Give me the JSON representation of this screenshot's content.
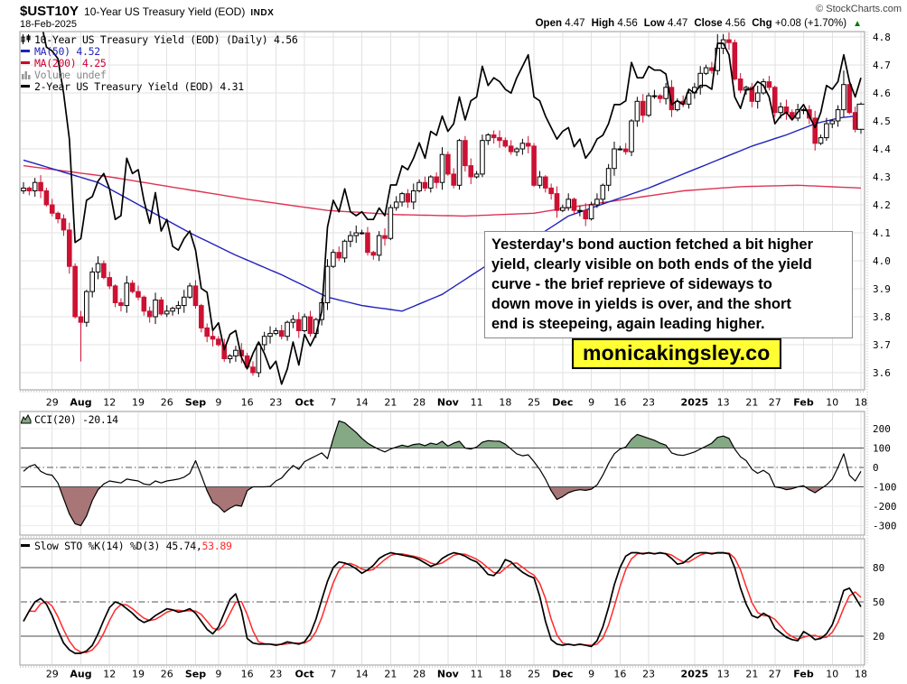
{
  "header": {
    "symbol": "$UST10Y",
    "name": "10-Year US Treasury Yield (EOD)",
    "exchange": "INDX",
    "date": "18-Feb-2025",
    "copyright": "© StockCharts.com",
    "ohlc": {
      "open_label": "Open",
      "open": "4.47",
      "high_label": "High",
      "high": "4.56",
      "low_label": "Low",
      "low": "4.47",
      "close_label": "Close",
      "close": "4.56",
      "chg_label": "Chg",
      "chg": "+0.08 (+1.70%)",
      "chg_direction_icon": "▲"
    }
  },
  "legend_main": {
    "series_label": "10-Year US Treasury Yield (EOD) (Daily) 4.56",
    "ma50_label": "MA(50) 4.52",
    "ma200_label": "MA(200) 4.25",
    "volume_label": "Volume undef",
    "series2_label": "2-Year US Treasury Yield (EOD) 4.31"
  },
  "legend_cci": {
    "label": "CCI(20) -20.14"
  },
  "legend_sto": {
    "label_black": "Slow STO %K(14) %D(3) 45.74,",
    "label_red": " 53.89"
  },
  "annotation": {
    "text": "Yesterday's bond auction fetched a bit higher\nyield, clearly visible on both ends of the yield\ncurve - the brief reprieve  of sideways to\ndown move in yields is over, and the short\nend is steepeing, again leading higher.",
    "watermark": "monicakingsley.co"
  },
  "colors": {
    "candle_down": "#cc1133",
    "candle_up_fill": "#ffffff",
    "candle_up_stroke": "#000000",
    "ma50": "#2222bb",
    "ma200": "#dd3355",
    "series2": "#000000",
    "sto_k": "#000000",
    "sto_d": "#ff2a2a",
    "cci_line": "#000000",
    "cci_fill_pos": "#85a885",
    "cci_fill_neg": "#a87676",
    "grid": "#e2e2e2",
    "band_line": "#4a4a4a",
    "panel_border": "#999999",
    "watermark_bg": "#ffff33",
    "legend_volume": "#888888",
    "chg_up": "#067806"
  },
  "chart_data": {
    "type": "candlestick",
    "title": "$UST10Y 10-Year US Treasury Yield (EOD) Daily with 2-Year overlay, CCI(20) and Slow Stochastics",
    "legend_position": "top-left",
    "grid": true,
    "x_labels": [
      [
        "29",
        5,
        0
      ],
      [
        "Aug",
        10,
        1
      ],
      [
        "12",
        15,
        0
      ],
      [
        "19",
        20,
        0
      ],
      [
        "26",
        25,
        0
      ],
      [
        "Sep",
        30,
        1
      ],
      [
        "9",
        34,
        0
      ],
      [
        "16",
        39,
        0
      ],
      [
        "23",
        44,
        0
      ],
      [
        "Oct",
        49,
        1
      ],
      [
        "7",
        54,
        0
      ],
      [
        "14",
        59,
        0
      ],
      [
        "21",
        64,
        0
      ],
      [
        "28",
        69,
        0
      ],
      [
        "Nov",
        74,
        1
      ],
      [
        "11",
        79,
        0
      ],
      [
        "18",
        84,
        0
      ],
      [
        "25",
        89,
        0
      ],
      [
        "Dec",
        94,
        1
      ],
      [
        "9",
        99,
        0
      ],
      [
        "16",
        104,
        0
      ],
      [
        "23",
        109,
        0
      ],
      [
        "2025",
        117,
        1
      ],
      [
        "13",
        122,
        0
      ],
      [
        "21",
        127,
        0
      ],
      [
        "27",
        131,
        0
      ],
      [
        "Feb",
        136,
        1
      ],
      [
        "10",
        141,
        0
      ],
      [
        "18",
        146,
        0
      ]
    ],
    "y_axis_main": {
      "min": 3.6,
      "max": 4.8,
      "step": 0.1
    },
    "y_axis_2y_overlay": {
      "min": 3.5,
      "max": 4.4
    },
    "cci_axis": [
      200,
      100,
      0,
      -100,
      -200,
      -300
    ],
    "sto_axis": [
      80,
      50,
      20
    ],
    "close_10y": [
      4.26,
      4.25,
      4.28,
      4.25,
      4.2,
      4.17,
      4.15,
      4.11,
      3.98,
      3.8,
      3.78,
      3.89,
      3.96,
      3.99,
      3.94,
      3.91,
      3.85,
      3.84,
      3.92,
      3.89,
      3.87,
      3.82,
      3.8,
      3.86,
      3.81,
      3.82,
      3.83,
      3.84,
      3.87,
      3.91,
      3.84,
      3.76,
      3.73,
      3.72,
      3.7,
      3.65,
      3.66,
      3.68,
      3.66,
      3.62,
      3.6,
      3.7,
      3.73,
      3.74,
      3.75,
      3.73,
      3.78,
      3.79,
      3.75,
      3.8,
      3.74,
      3.79,
      3.85,
      3.98,
      4.03,
      4.01,
      4.07,
      4.09,
      4.1,
      4.1,
      4.03,
      4.02,
      4.09,
      4.08,
      4.19,
      4.21,
      4.24,
      4.21,
      4.25,
      4.28,
      4.26,
      4.3,
      4.28,
      4.38,
      4.31,
      4.27,
      4.43,
      4.34,
      4.3,
      4.31,
      4.43,
      4.45,
      4.44,
      4.43,
      4.41,
      4.39,
      4.4,
      4.42,
      4.41,
      4.27,
      4.3,
      4.26,
      4.24,
      4.18,
      4.19,
      4.22,
      4.18,
      4.18,
      4.15,
      4.2,
      4.22,
      4.27,
      4.33,
      4.4,
      4.4,
      4.39,
      4.5,
      4.57,
      4.52,
      4.59,
      4.59,
      4.58,
      4.62,
      4.54,
      4.57,
      4.56,
      4.6,
      4.62,
      4.67,
      4.69,
      4.68,
      4.76,
      4.79,
      4.78,
      4.65,
      4.61,
      4.62,
      4.57,
      4.6,
      4.64,
      4.62,
      4.53,
      4.55,
      4.53,
      4.51,
      4.54,
      4.54,
      4.51,
      4.42,
      4.44,
      4.49,
      4.5,
      4.54,
      4.63,
      4.53,
      4.47,
      4.56
    ],
    "close_2y": [
      4.52,
      4.49,
      4.44,
      4.46,
      4.39,
      4.38,
      4.36,
      4.27,
      4.15,
      3.88,
      3.89,
      3.99,
      4.0,
      4.04,
      4.06,
      4.02,
      3.94,
      3.95,
      4.1,
      4.06,
      4.07,
      3.99,
      3.93,
      4.01,
      3.91,
      3.94,
      3.87,
      3.86,
      3.89,
      3.91,
      3.86,
      3.76,
      3.75,
      3.65,
      3.67,
      3.6,
      3.64,
      3.65,
      3.58,
      3.55,
      3.59,
      3.62,
      3.59,
      3.55,
      3.57,
      3.51,
      3.55,
      3.62,
      3.56,
      3.64,
      3.61,
      3.64,
      3.7,
      3.92,
      3.99,
      3.96,
      4.02,
      3.96,
      3.95,
      3.96,
      3.94,
      3.94,
      3.97,
      3.95,
      4.03,
      4.03,
      4.08,
      4.07,
      4.1,
      4.14,
      4.1,
      4.17,
      4.16,
      4.21,
      4.17,
      4.19,
      4.26,
      4.2,
      4.25,
      4.26,
      4.34,
      4.29,
      4.31,
      4.3,
      4.28,
      4.27,
      4.31,
      4.34,
      4.37,
      4.26,
      4.25,
      4.21,
      4.18,
      4.15,
      4.17,
      4.18,
      4.13,
      4.15,
      4.1,
      4.12,
      4.15,
      4.16,
      4.19,
      4.24,
      4.24,
      4.25,
      4.35,
      4.31,
      4.31,
      4.34,
      4.33,
      4.33,
      4.32,
      4.24,
      4.25,
      4.24,
      4.28,
      4.27,
      4.29,
      4.29,
      4.28,
      4.4,
      4.4,
      4.37,
      4.26,
      4.23,
      4.28,
      4.28,
      4.3,
      4.29,
      4.26,
      4.19,
      4.21,
      4.22,
      4.2,
      4.22,
      4.24,
      4.21,
      4.18,
      4.22,
      4.29,
      4.28,
      4.3,
      4.37,
      4.3,
      4.26,
      4.31
    ],
    "ma50_anchors": [
      [
        0,
        4.36
      ],
      [
        13,
        4.28
      ],
      [
        21,
        4.19
      ],
      [
        29,
        4.1
      ],
      [
        37,
        4.02
      ],
      [
        45,
        3.95
      ],
      [
        53,
        3.87
      ],
      [
        59,
        3.84
      ],
      [
        66,
        3.82
      ],
      [
        73,
        3.88
      ],
      [
        82,
        4.0
      ],
      [
        89,
        4.08
      ],
      [
        95,
        4.16
      ],
      [
        102,
        4.21
      ],
      [
        109,
        4.26
      ],
      [
        115,
        4.31
      ],
      [
        121,
        4.36
      ],
      [
        127,
        4.41
      ],
      [
        133,
        4.45
      ],
      [
        138,
        4.49
      ],
      [
        142,
        4.51
      ],
      [
        146,
        4.52
      ]
    ],
    "ma200_anchors": [
      [
        0,
        4.34
      ],
      [
        15,
        4.3
      ],
      [
        27,
        4.26
      ],
      [
        39,
        4.22
      ],
      [
        53,
        4.18
      ],
      [
        65,
        4.165
      ],
      [
        77,
        4.16
      ],
      [
        89,
        4.17
      ],
      [
        95,
        4.19
      ],
      [
        105,
        4.22
      ],
      [
        115,
        4.25
      ],
      [
        125,
        4.265
      ],
      [
        135,
        4.27
      ],
      [
        146,
        4.26
      ]
    ],
    "cci": [
      -20,
      5,
      15,
      -20,
      -35,
      -40,
      -80,
      -160,
      -240,
      -290,
      -300,
      -250,
      -170,
      -115,
      -85,
      -70,
      -75,
      -80,
      -60,
      -65,
      -70,
      -85,
      -90,
      -70,
      -80,
      -70,
      -65,
      -60,
      -50,
      -30,
      35,
      -40,
      -120,
      -180,
      -200,
      -230,
      -210,
      -195,
      -200,
      -120,
      -100,
      -100,
      -100,
      -98,
      -70,
      -55,
      -20,
      10,
      -10,
      30,
      45,
      60,
      75,
      45,
      150,
      240,
      230,
      205,
      180,
      150,
      125,
      108,
      92,
      80,
      95,
      105,
      115,
      108,
      118,
      122,
      112,
      125,
      118,
      135,
      110,
      125,
      135,
      100,
      95,
      105,
      130,
      138,
      136,
      135,
      120,
      95,
      70,
      60,
      65,
      30,
      -10,
      -60,
      -120,
      -165,
      -150,
      -130,
      -120,
      -115,
      -118,
      -112,
      -90,
      -40,
      20,
      70,
      95,
      105,
      145,
      170,
      160,
      150,
      140,
      125,
      115,
      75,
      65,
      62,
      70,
      80,
      95,
      110,
      125,
      155,
      162,
      150,
      95,
      55,
      35,
      -10,
      -30,
      -15,
      -35,
      -100,
      -105,
      -115,
      -110,
      -100,
      -95,
      -115,
      -130,
      -110,
      -90,
      -60,
      0,
      70,
      -40,
      -70,
      -20.14
    ],
    "sto_k": [
      33,
      42,
      50,
      53,
      48,
      38,
      25,
      14,
      8,
      5,
      5,
      7,
      12,
      22,
      34,
      45,
      50,
      48,
      44,
      40,
      35,
      32,
      34,
      38,
      41,
      44,
      43,
      41,
      42,
      44,
      40,
      33,
      26,
      22,
      28,
      40,
      52,
      57,
      42,
      18,
      14,
      13,
      13,
      13,
      12,
      13,
      15,
      14,
      13,
      15,
      22,
      35,
      52,
      68,
      80,
      85,
      84,
      82,
      79,
      75,
      78,
      82,
      88,
      91,
      93,
      92,
      91,
      90,
      89,
      87,
      84,
      81,
      83,
      88,
      91,
      93,
      92,
      90,
      87,
      85,
      80,
      74,
      73,
      78,
      87,
      85,
      80,
      76,
      73,
      71,
      55,
      33,
      17,
      13,
      12,
      13,
      12,
      13,
      12,
      11,
      16,
      28,
      45,
      65,
      80,
      90,
      93,
      93,
      92,
      93,
      92,
      93,
      92,
      88,
      83,
      84,
      88,
      92,
      93,
      93,
      92,
      93,
      93,
      92,
      80,
      62,
      48,
      38,
      36,
      40,
      37,
      27,
      23,
      19,
      17,
      16,
      24,
      21,
      17,
      18,
      22,
      30,
      44,
      60,
      62,
      54,
      45.74
    ],
    "wick_overrides": {
      "10": {
        "low": 3.64
      },
      "121": {
        "high": 4.81
      },
      "122": {
        "high": 4.81
      },
      "143": {
        "high": 4.68
      },
      "146": {
        "w": 8
      }
    }
  }
}
